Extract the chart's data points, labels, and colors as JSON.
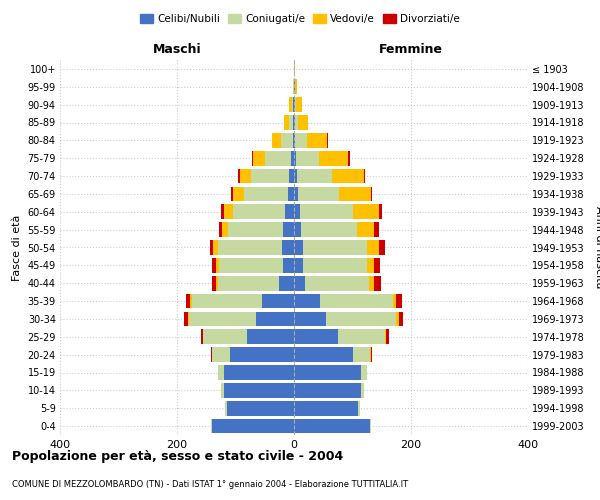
{
  "age_groups": [
    "0-4",
    "5-9",
    "10-14",
    "15-19",
    "20-24",
    "25-29",
    "30-34",
    "35-39",
    "40-44",
    "45-49",
    "50-54",
    "55-59",
    "60-64",
    "65-69",
    "70-74",
    "75-79",
    "80-84",
    "85-89",
    "90-94",
    "95-99",
    "100+"
  ],
  "birth_years": [
    "1999-2003",
    "1994-1998",
    "1989-1993",
    "1984-1988",
    "1979-1983",
    "1974-1978",
    "1969-1973",
    "1964-1968",
    "1959-1963",
    "1954-1958",
    "1949-1953",
    "1944-1948",
    "1939-1943",
    "1934-1938",
    "1929-1933",
    "1924-1928",
    "1919-1923",
    "1914-1918",
    "1909-1913",
    "1904-1908",
    "≤ 1903"
  ],
  "colors": {
    "celibi": "#4472C4",
    "coniugati": "#c5d9a0",
    "vedovi": "#ffc000",
    "divorziati": "#cc0000"
  },
  "maschi": {
    "celibi": [
      140,
      115,
      120,
      120,
      110,
      80,
      65,
      55,
      25,
      18,
      20,
      18,
      15,
      10,
      8,
      5,
      2,
      1,
      1,
      0,
      0
    ],
    "coniugati": [
      2,
      3,
      5,
      10,
      30,
      75,
      115,
      120,
      105,
      110,
      110,
      95,
      90,
      75,
      65,
      45,
      20,
      8,
      3,
      1,
      0
    ],
    "vedovi": [
      0,
      0,
      0,
      0,
      1,
      1,
      2,
      2,
      3,
      5,
      8,
      10,
      15,
      20,
      20,
      20,
      15,
      8,
      4,
      1,
      0
    ],
    "divorziati": [
      0,
      0,
      0,
      0,
      1,
      3,
      6,
      8,
      8,
      8,
      5,
      5,
      5,
      3,
      3,
      2,
      1,
      0,
      0,
      0,
      0
    ]
  },
  "femmine": {
    "celibi": [
      130,
      110,
      115,
      115,
      100,
      75,
      55,
      45,
      18,
      15,
      15,
      12,
      10,
      7,
      5,
      3,
      2,
      1,
      1,
      1,
      0
    ],
    "coniugati": [
      2,
      3,
      5,
      10,
      30,
      80,
      120,
      125,
      110,
      110,
      110,
      95,
      90,
      70,
      60,
      40,
      20,
      5,
      3,
      1,
      0
    ],
    "vedovi": [
      0,
      0,
      0,
      0,
      1,
      2,
      4,
      5,
      8,
      12,
      20,
      30,
      45,
      55,
      55,
      50,
      35,
      18,
      10,
      3,
      1
    ],
    "divorziati": [
      0,
      0,
      0,
      0,
      2,
      5,
      8,
      10,
      12,
      10,
      10,
      8,
      5,
      2,
      2,
      2,
      1,
      0,
      0,
      0,
      0
    ]
  },
  "xlim": 400,
  "title": "Popolazione per età, sesso e stato civile - 2004",
  "subtitle": "COMUNE DI MEZZOLOMBARDO (TN) - Dati ISTAT 1° gennaio 2004 - Elaborazione TUTTITALIA.IT",
  "ylabel_left": "Fasce di età",
  "ylabel_right": "Anni di nascita",
  "header_left": "Maschi",
  "header_right": "Femmine",
  "legend_labels": [
    "Celibi/Nubili",
    "Coniugati/e",
    "Vedovi/e",
    "Divorziati/e"
  ],
  "background_color": "#ffffff",
  "grid_color": "#cccccc"
}
